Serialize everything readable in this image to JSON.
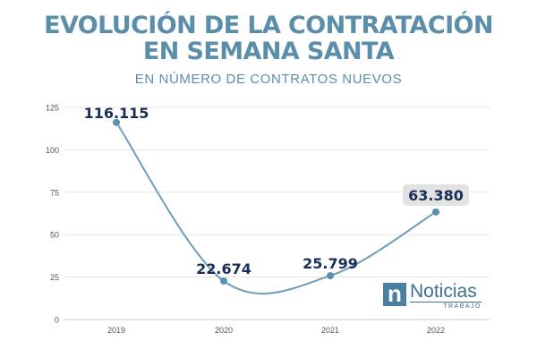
{
  "title_line1": "EVOLUCIÓN DE LA CONTRATACIÓN",
  "title_line2": "EN SEMANA SANTA",
  "subtitle": "EN NÚMERO DE CONTRATOS NUEVOS",
  "logo": {
    "name": "Noticias",
    "sub": "TRABAJO",
    "mark": "n"
  },
  "colors": {
    "title": "#5b8eaa",
    "line": "#6b9fbd",
    "marker": "#5a8fb0",
    "label": "#1b2e57",
    "highlight_bg": "#e2e2e2",
    "grid": "#e3e3e3"
  },
  "chart_data": {
    "type": "line",
    "title": "EVOLUCIÓN DE LA CONTRATACIÓN EN SEMANA SANTA",
    "subtitle": "EN NÚMERO DE CONTRATOS NUEVOS",
    "xlabel": "",
    "ylabel": "",
    "categories": [
      "2019",
      "2020",
      "2021",
      "2022"
    ],
    "values": [
      116.115,
      22.674,
      25.799,
      63.38
    ],
    "data_labels": [
      "116.115",
      "22.674",
      "25.799",
      "63.380"
    ],
    "highlighted_label": "63.380",
    "ylim": [
      0,
      125
    ],
    "yticks": [
      "0",
      "25",
      "50",
      "75",
      "100",
      "125"
    ],
    "grid": true,
    "smooth": true,
    "legend": "none"
  }
}
